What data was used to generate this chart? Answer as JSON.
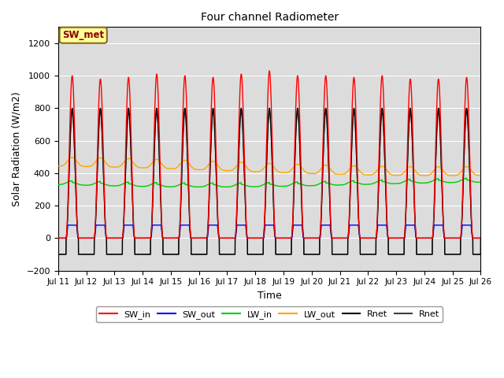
{
  "title": "Four channel Radiometer",
  "xlabel": "Time",
  "ylabel": "Solar Radiation (W/m2)",
  "ylim": [
    -200,
    1300
  ],
  "yticks": [
    -200,
    0,
    200,
    400,
    600,
    800,
    1000,
    1200
  ],
  "num_days": 15,
  "start_day": 11,
  "colors": {
    "SW_in": "#FF0000",
    "SW_out": "#0000FF",
    "LW_in": "#00CC00",
    "LW_out": "#FFA500",
    "Rnet1": "#000000",
    "Rnet2": "#404040"
  },
  "background_color": "#DCDCDC",
  "annotation_text": "SW_met",
  "annotation_facecolor": "#FFFF99",
  "annotation_edgecolor": "#8B6914",
  "legend_entries": [
    "SW_in",
    "SW_out",
    "LW_in",
    "LW_out",
    "Rnet",
    "Rnet"
  ],
  "legend_colors": [
    "#FF0000",
    "#0000FF",
    "#00CC00",
    "#FFA500",
    "#000000",
    "#404040"
  ]
}
